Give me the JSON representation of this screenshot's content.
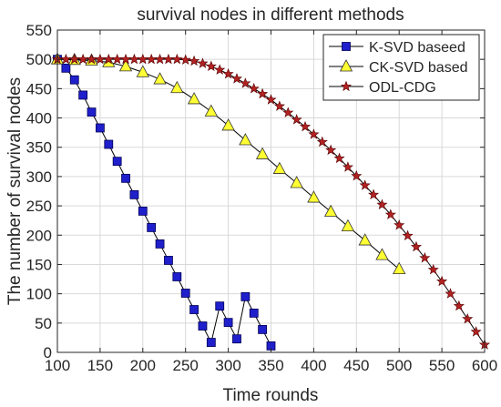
{
  "chart_data": {
    "type": "line",
    "title": "survival nodes in different methods",
    "xlabel": "Time rounds",
    "ylabel": "The number of survival nodes",
    "xlim": [
      100,
      600
    ],
    "ylim": [
      0,
      550
    ],
    "xticks": [
      100,
      150,
      200,
      250,
      300,
      350,
      400,
      450,
      500,
      550,
      600
    ],
    "yticks": [
      0,
      50,
      100,
      150,
      200,
      250,
      300,
      350,
      400,
      450,
      500,
      550
    ],
    "grid": true,
    "legend_position": "top-right",
    "series": [
      {
        "name": "K-SVD baseed",
        "marker": "square",
        "color": "#1f1fcc",
        "x": [
          100,
          110,
          120,
          130,
          140,
          150,
          160,
          170,
          180,
          190,
          200,
          210,
          220,
          230,
          240,
          250,
          260,
          270,
          280,
          290,
          300,
          310,
          320,
          330,
          340,
          350
        ],
        "y": [
          500,
          485,
          465,
          439,
          410,
          383,
          355,
          326,
          297,
          269,
          241,
          213,
          185,
          157,
          129,
          101,
          73,
          45,
          17,
          79,
          51,
          23,
          95,
          67,
          39,
          11
        ]
      },
      {
        "name": "CK-SVD based",
        "marker": "triangle",
        "color": "#ffff33",
        "x": [
          100,
          120,
          140,
          160,
          180,
          200,
          220,
          240,
          260,
          280,
          300,
          320,
          340,
          360,
          380,
          400,
          420,
          440,
          460,
          480,
          500
        ],
        "y": [
          500,
          499,
          498,
          495,
          488,
          478,
          466,
          451,
          432,
          411,
          387,
          362,
          338,
          313,
          289,
          264,
          240,
          215,
          191,
          166,
          142
        ]
      },
      {
        "name": "ODL-CDG",
        "marker": "star",
        "color": "#b22222",
        "x": [
          100,
          110,
          120,
          130,
          140,
          150,
          160,
          170,
          180,
          190,
          200,
          210,
          220,
          230,
          240,
          250,
          260,
          270,
          280,
          290,
          300,
          310,
          320,
          330,
          340,
          350,
          360,
          370,
          380,
          390,
          400,
          410,
          420,
          430,
          440,
          450,
          460,
          470,
          480,
          490,
          500,
          510,
          520,
          530,
          540,
          550,
          560,
          570,
          580,
          590,
          600
        ],
        "y": [
          500,
          500,
          500,
          500,
          500,
          500,
          500,
          500,
          500,
          500,
          500,
          500,
          500,
          500,
          500,
          499,
          497,
          493,
          488,
          482,
          475,
          467,
          459,
          450,
          441,
          431,
          420,
          409,
          397,
          385,
          372,
          359,
          345,
          331,
          316,
          301,
          285,
          269,
          252,
          235,
          217,
          199,
          180,
          161,
          141,
          121,
          100,
          79,
          57,
          35,
          13
        ]
      }
    ]
  }
}
